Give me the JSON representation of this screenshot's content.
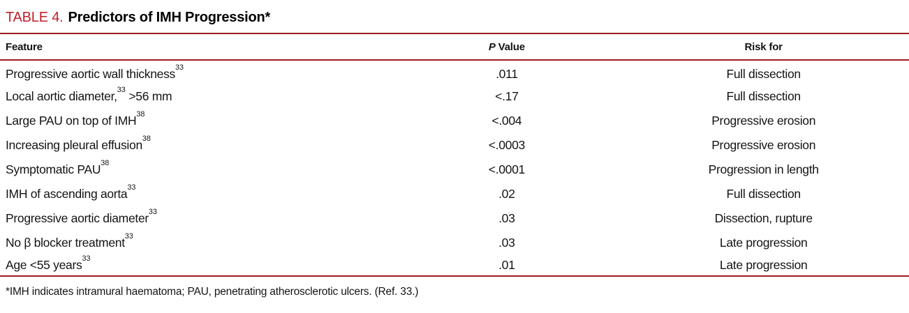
{
  "title": {
    "label": "TABLE 4.",
    "text": "Predictors of IMH Progression*"
  },
  "header": {
    "feature": "Feature",
    "p_value_italic": "P",
    "p_value_rest": " Value",
    "risk_for": "Risk for"
  },
  "rows": [
    {
      "feature": "Progressive aortic wall thickness",
      "feature_sup": "33",
      "feature_post": "",
      "p_value": ".011",
      "risk_for": "Full dissection"
    },
    {
      "feature": "Local aortic diameter,",
      "feature_sup": "33",
      "feature_post": " >56 mm",
      "p_value": "<.17",
      "risk_for": "Full dissection"
    },
    {
      "feature": "Large PAU on top of IMH",
      "feature_sup": "38",
      "feature_post": "",
      "p_value": "<.004",
      "risk_for": "Progressive erosion"
    },
    {
      "feature": "Increasing pleural effusion",
      "feature_sup": "38",
      "feature_post": "",
      "p_value": "<.0003",
      "risk_for": "Progressive erosion"
    },
    {
      "feature": "Symptomatic PAU",
      "feature_sup": "38",
      "feature_post": "",
      "p_value": "<.0001",
      "risk_for": "Progression in length"
    },
    {
      "feature": "IMH of ascending aorta",
      "feature_sup": "33",
      "feature_post": "",
      "p_value": ".02",
      "risk_for": "Full dissection"
    },
    {
      "feature": "Progressive aortic diameter",
      "feature_sup": "33",
      "feature_post": "",
      "p_value": ".03",
      "risk_for": "Dissection, rupture"
    },
    {
      "feature": "No β blocker treatment",
      "feature_sup": "33",
      "feature_post": "",
      "p_value": ".03",
      "risk_for": "Late progression"
    },
    {
      "feature": "Age <55 years",
      "feature_sup": "33",
      "feature_post": "",
      "p_value": ".01",
      "risk_for": "Late progression"
    }
  ],
  "footnote": "*IMH indicates intramural haematoma; PAU, penetrating atherosclerotic ulcers. (Ref. 33.)",
  "colors": {
    "accent_red": "#c1202b",
    "rule_red": "#9e1c20"
  }
}
